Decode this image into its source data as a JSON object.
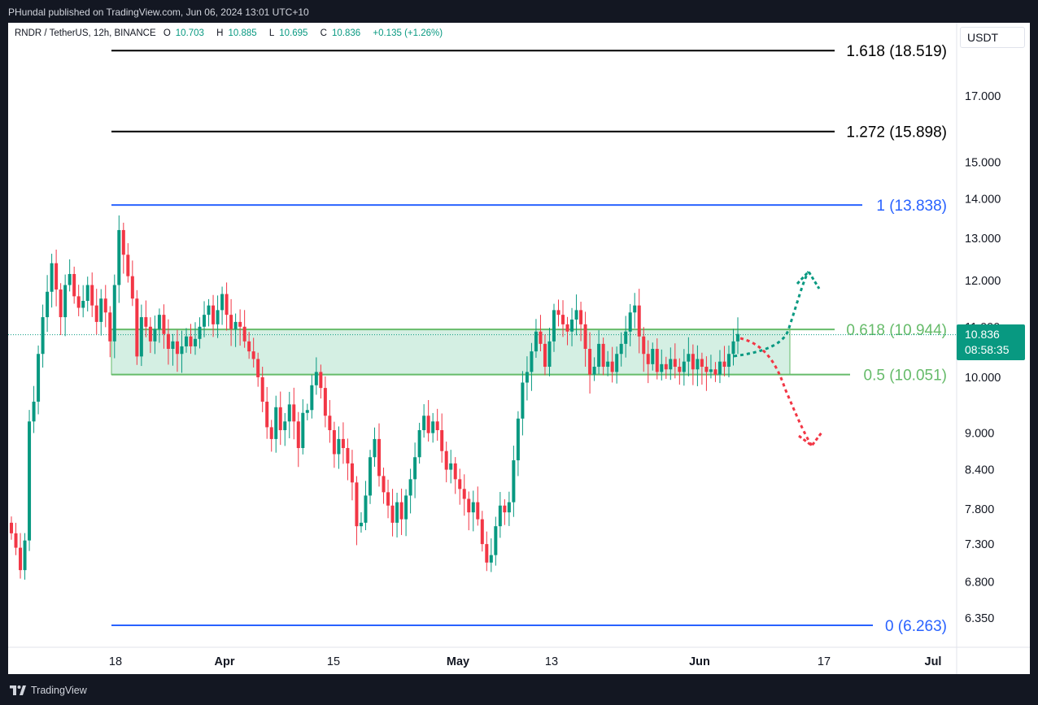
{
  "header": {
    "published": "PHundal published on TradingView.com, Jun 06, 2024 13:01 UTC+10"
  },
  "legend": {
    "symbol": "RNDR / TetherUS, 12h, BINANCE",
    "open_label": "O",
    "open": "10.703",
    "high_label": "H",
    "high": "10.885",
    "low_label": "L",
    "low": "10.695",
    "close_label": "C",
    "close": "10.836",
    "change": "+0.135 (+1.26%)"
  },
  "currency": "USDT",
  "price_tag": {
    "price": "10.836",
    "countdown": "08:58:35"
  },
  "brand": "TradingView",
  "colors": {
    "up": "#089981",
    "down": "#f23645",
    "fib_blue": "#2962ff",
    "fib_green": "#66bb6a",
    "zone_fill": "#d4efe3",
    "ext_black": "#000000",
    "arrow_up": "#089981",
    "arrow_down": "#f23645"
  },
  "chart_data": {
    "type": "candlestick",
    "y_axis_ticks": [
      "17.000",
      "15.000",
      "14.000",
      "13.000",
      "12.000",
      "11.000",
      "10.000",
      "9.000",
      "8.400",
      "7.800",
      "7.300",
      "6.800",
      "6.350"
    ],
    "x_axis_ticks": [
      "18",
      "Apr",
      "15",
      "May",
      "13",
      "Jun",
      "17",
      "Jul"
    ],
    "fib_levels": [
      {
        "label": "1.618 (18.519)",
        "value": 18.519
      },
      {
        "label": "1.272 (15.898)",
        "value": 15.898
      },
      {
        "label": "1 (13.838)",
        "value": 13.838
      },
      {
        "label": "0.618 (10.944)",
        "value": 10.944
      },
      {
        "label": "0.5 (10.051)",
        "value": 10.051
      },
      {
        "label": "0 (6.263)",
        "value": 6.263
      }
    ],
    "last_price": 10.836,
    "closes": [
      7.45,
      7.25,
      6.95,
      7.35,
      9.2,
      9.55,
      10.45,
      11.2,
      11.75,
      12.4,
      11.8,
      11.2,
      11.9,
      12.15,
      11.65,
      11.4,
      11.55,
      11.9,
      11.45,
      11.1,
      11.6,
      11.3,
      10.7,
      11.9,
      13.2,
      12.6,
      12.1,
      11.6,
      10.4,
      11.2,
      11.0,
      10.7,
      10.95,
      11.25,
      10.85,
      10.55,
      10.7,
      10.45,
      10.6,
      10.8,
      10.6,
      10.75,
      11.0,
      11.25,
      11.45,
      11.05,
      11.35,
      11.7,
      11.25,
      10.95,
      11.1,
      11.0,
      10.7,
      10.5,
      10.35,
      10.0,
      9.55,
      9.1,
      8.9,
      9.45,
      9.05,
      9.2,
      9.5,
      9.2,
      8.75,
      9.35,
      9.4,
      9.85,
      10.1,
      9.8,
      9.3,
      9.05,
      8.65,
      8.9,
      8.75,
      8.5,
      8.2,
      7.55,
      7.6,
      8.0,
      8.6,
      8.9,
      8.3,
      8.05,
      7.85,
      7.6,
      7.9,
      7.65,
      8.0,
      8.25,
      8.6,
      9.05,
      9.3,
      9.0,
      9.2,
      9.05,
      8.7,
      8.4,
      8.5,
      8.25,
      8.1,
      7.95,
      7.75,
      7.9,
      7.65,
      7.3,
      7.05,
      7.15,
      7.55,
      7.85,
      7.75,
      7.9,
      8.55,
      9.25,
      9.9,
      10.1,
      10.5,
      10.9,
      10.65,
      10.2,
      10.7,
      11.35,
      11.25,
      11.05,
      10.9,
      11.15,
      11.35,
      11.05,
      10.55,
      10.05,
      10.2,
      10.65,
      10.2,
      10.3,
      10.1,
      10.45,
      10.65,
      10.9,
      11.3,
      11.45,
      10.8,
      10.45,
      10.25,
      10.55,
      10.1,
      10.25,
      10.15,
      10.35,
      10.2,
      10.1,
      10.3,
      10.45,
      10.15,
      10.35,
      10.2,
      10.1,
      10.15,
      10.05,
      10.3,
      10.2,
      10.45,
      10.7,
      10.85
    ]
  }
}
